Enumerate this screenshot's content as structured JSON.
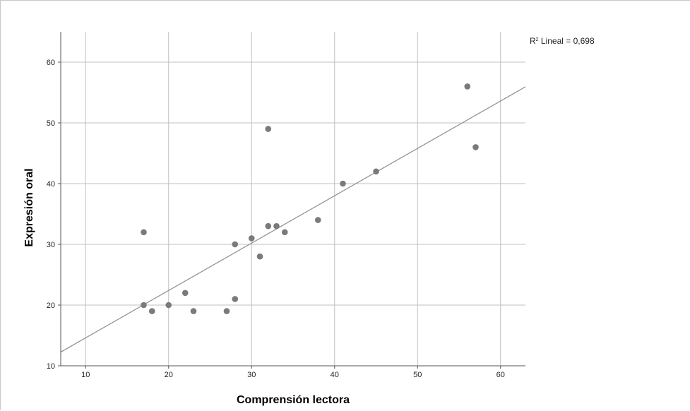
{
  "chart_data": {
    "type": "scatter",
    "xlabel": "Comprensión lectora",
    "ylabel": "Expresión oral",
    "xlim": [
      7,
      63
    ],
    "ylim": [
      10,
      65
    ],
    "x_ticks": [
      10,
      20,
      30,
      40,
      50,
      60
    ],
    "y_ticks": [
      10,
      20,
      30,
      40,
      50,
      60
    ],
    "grid": true,
    "colors": {
      "points": "#7a7a7a",
      "fit_line": "#8c8c8c",
      "grid": "#c0c0c0",
      "axis": "#555555"
    },
    "points": [
      {
        "x": 17,
        "y": 32
      },
      {
        "x": 17,
        "y": 20
      },
      {
        "x": 18,
        "y": 19
      },
      {
        "x": 20,
        "y": 20
      },
      {
        "x": 22,
        "y": 22
      },
      {
        "x": 23,
        "y": 19
      },
      {
        "x": 27,
        "y": 19
      },
      {
        "x": 28,
        "y": 21
      },
      {
        "x": 28,
        "y": 30
      },
      {
        "x": 30,
        "y": 31
      },
      {
        "x": 31,
        "y": 28
      },
      {
        "x": 32,
        "y": 33
      },
      {
        "x": 32,
        "y": 49
      },
      {
        "x": 33,
        "y": 33
      },
      {
        "x": 34,
        "y": 32
      },
      {
        "x": 38,
        "y": 34
      },
      {
        "x": 41,
        "y": 40
      },
      {
        "x": 45,
        "y": 42
      },
      {
        "x": 56,
        "y": 56
      },
      {
        "x": 57,
        "y": 46
      }
    ],
    "fit_line": {
      "slope": 0.78,
      "intercept": 6.8
    },
    "fit_label": {
      "prefix": "R",
      "superscript": "2",
      "text": " Lineal = 0,698"
    }
  }
}
